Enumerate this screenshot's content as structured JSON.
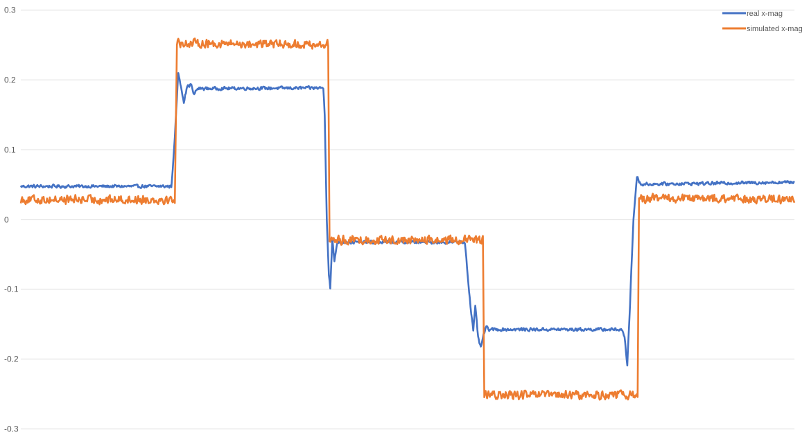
{
  "chart_data": {
    "type": "line",
    "title": "",
    "xlabel": "",
    "ylabel": "",
    "ylim": [
      -0.3,
      0.3
    ],
    "yticks": [
      0.3,
      0.2,
      0.1,
      0,
      -0.1,
      -0.2,
      -0.3
    ],
    "ytick_labels": [
      "0.3",
      "0.2",
      "0.1",
      "0",
      "-0.1",
      "-0.2",
      "-0.3"
    ],
    "grid": true,
    "legend_position": "top-right",
    "x_count": 1120,
    "series": [
      {
        "name": "real x-mag",
        "color": "#4472c4",
        "noise": 0.002,
        "segments": [
          {
            "x": 0,
            "y": 0.047
          },
          {
            "x": 218,
            "y": 0.047
          },
          {
            "x": 222,
            "y": 0.1
          },
          {
            "x": 228,
            "y": 0.21
          },
          {
            "x": 232,
            "y": 0.19
          },
          {
            "x": 236,
            "y": 0.168
          },
          {
            "x": 241,
            "y": 0.19
          },
          {
            "x": 247,
            "y": 0.193
          },
          {
            "x": 250,
            "y": 0.178
          },
          {
            "x": 256,
            "y": 0.187
          },
          {
            "x": 438,
            "y": 0.188
          },
          {
            "x": 440,
            "y": 0.15
          },
          {
            "x": 443,
            "y": 0.0
          },
          {
            "x": 446,
            "y": -0.08
          },
          {
            "x": 448,
            "y": -0.098
          },
          {
            "x": 451,
            "y": -0.03
          },
          {
            "x": 454,
            "y": -0.06
          },
          {
            "x": 458,
            "y": -0.033
          },
          {
            "x": 643,
            "y": -0.033
          },
          {
            "x": 647,
            "y": -0.08
          },
          {
            "x": 651,
            "y": -0.125
          },
          {
            "x": 655,
            "y": -0.16
          },
          {
            "x": 658,
            "y": -0.125
          },
          {
            "x": 662,
            "y": -0.168
          },
          {
            "x": 666,
            "y": -0.185
          },
          {
            "x": 670,
            "y": -0.165
          },
          {
            "x": 674,
            "y": -0.155
          },
          {
            "x": 678,
            "y": -0.158
          },
          {
            "x": 870,
            "y": -0.158
          },
          {
            "x": 874,
            "y": -0.17
          },
          {
            "x": 878,
            "y": -0.208
          },
          {
            "x": 882,
            "y": -0.12
          },
          {
            "x": 887,
            "y": 0.0
          },
          {
            "x": 892,
            "y": 0.062
          },
          {
            "x": 897,
            "y": 0.05
          },
          {
            "x": 1120,
            "y": 0.053
          }
        ]
      },
      {
        "name": "simulated x-mag",
        "color": "#ed7d31",
        "noise": 0.0055,
        "segments": [
          {
            "x": 0,
            "y": 0.028
          },
          {
            "x": 223,
            "y": 0.028
          },
          {
            "x": 226,
            "y": 0.252
          },
          {
            "x": 445,
            "y": 0.25
          },
          {
            "x": 447,
            "y": -0.03
          },
          {
            "x": 669,
            "y": -0.03
          },
          {
            "x": 671,
            "y": -0.252
          },
          {
            "x": 893,
            "y": -0.252
          },
          {
            "x": 895,
            "y": 0.03
          },
          {
            "x": 1120,
            "y": 0.028
          }
        ]
      }
    ]
  }
}
